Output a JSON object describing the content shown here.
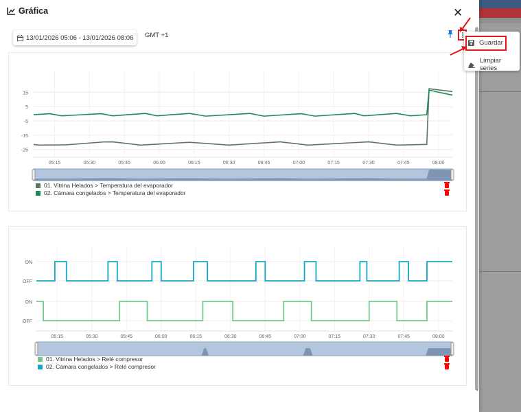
{
  "dialog": {
    "title": "Gráfica",
    "close_label": "✕"
  },
  "toolbar": {
    "date_range": "13/01/2026 05:06 - 13/01/2026 08:06",
    "timezone": "GMT +1"
  },
  "menu": {
    "items": [
      {
        "label": "Guardar",
        "icon": "save-icon"
      },
      {
        "label": "Limpiar series",
        "icon": "eraser-icon"
      }
    ]
  },
  "colors": {
    "accent": "#1a73e8",
    "highlight": "#e0161b",
    "navigator": "#b3c6de"
  },
  "chart_data": [
    {
      "type": "line",
      "x_ticks": [
        "05:15",
        "05:30",
        "05:45",
        "06:00",
        "06:15",
        "06:30",
        "06:45",
        "07:00",
        "07:15",
        "07:30",
        "07:45",
        "08:00"
      ],
      "y_ticks": [
        "15",
        "5",
        "-5",
        "-15",
        "-25"
      ],
      "x_range": [
        "05:06",
        "08:06"
      ],
      "y_range": [
        -30.5,
        20
      ],
      "grid": true,
      "legend_placement": "bottom-left",
      "series": [
        {
          "name": "01. Vitrina Helados > Temperatura del evaporador",
          "color": "#5e7565",
          "points": [
            [
              "05:06",
              -21.5
            ],
            [
              "05:08",
              -22
            ],
            [
              "05:20",
              -21.8
            ],
            [
              "05:36",
              -19.8
            ],
            [
              "05:40",
              -19.7
            ],
            [
              "05:52",
              -22
            ],
            [
              "06:13",
              -20
            ],
            [
              "06:30",
              -22
            ],
            [
              "06:52",
              -19.7
            ],
            [
              "07:04",
              -22
            ],
            [
              "07:30",
              -19.7
            ],
            [
              "07:42",
              -22
            ],
            [
              "07:55",
              -21.5
            ],
            [
              "07:56",
              17.5
            ],
            [
              "08:06",
              15.5
            ]
          ]
        },
        {
          "name": "02. Cámara congelados > Temperatura del evaporador",
          "color": "#1b8a57",
          "points": [
            [
              "05:06",
              -0.7
            ],
            [
              "05:13",
              0
            ],
            [
              "05:18",
              -1.5
            ],
            [
              "05:35",
              0
            ],
            [
              "05:40",
              -1.5
            ],
            [
              "05:54",
              0.2
            ],
            [
              "05:59",
              -1.5
            ],
            [
              "06:13",
              0.2
            ],
            [
              "06:20",
              -1.7
            ],
            [
              "06:39",
              0.2
            ],
            [
              "06:45",
              -1.7
            ],
            [
              "07:01",
              0
            ],
            [
              "07:07",
              -1.7
            ],
            [
              "07:24",
              0.2
            ],
            [
              "07:28",
              -1.5
            ],
            [
              "07:42",
              0.2
            ],
            [
              "07:48",
              -1.5
            ],
            [
              "07:55",
              -0.7
            ],
            [
              "07:56",
              16.5
            ],
            [
              "08:06",
              13
            ]
          ]
        }
      ]
    },
    {
      "type": "line",
      "step": true,
      "x_ticks": [
        "05:15",
        "05:30",
        "05:45",
        "06:00",
        "06:15",
        "06:30",
        "06:45",
        "07:00",
        "07:15",
        "07:30",
        "07:45",
        "08:00"
      ],
      "y_ticks": [
        "ON",
        "OFF",
        "ON",
        "OFF"
      ],
      "x_range": [
        "05:06",
        "08:06"
      ],
      "grid": true,
      "legend_placement": "bottom-left",
      "series": [
        {
          "name": "01. Vitrina Helados > Relé compresor",
          "color": "#74c98e",
          "initial": "ON",
          "transitions": [
            [
              "05:09",
              "OFF"
            ],
            [
              "05:42",
              "ON"
            ],
            [
              "05:54",
              "OFF"
            ],
            [
              "06:18",
              "ON"
            ],
            [
              "06:31",
              "OFF"
            ],
            [
              "06:53",
              "ON"
            ],
            [
              "07:05",
              "OFF"
            ],
            [
              "07:30",
              "ON"
            ],
            [
              "07:42",
              "OFF"
            ],
            [
              "07:55",
              "ON"
            ]
          ]
        },
        {
          "name": "02. Cámara congelados > Relé compresor",
          "color": "#16a6c9",
          "initial": "OFF",
          "transitions": [
            [
              "05:14",
              "ON"
            ],
            [
              "05:19",
              "OFF"
            ],
            [
              "05:37",
              "ON"
            ],
            [
              "05:41",
              "OFF"
            ],
            [
              "05:56",
              "ON"
            ],
            [
              "06:00",
              "OFF"
            ],
            [
              "06:14",
              "ON"
            ],
            [
              "06:20",
              "OFF"
            ],
            [
              "06:41",
              "ON"
            ],
            [
              "06:45",
              "OFF"
            ],
            [
              "07:02",
              "ON"
            ],
            [
              "07:07",
              "OFF"
            ],
            [
              "07:26",
              "ON"
            ],
            [
              "07:29",
              "OFF"
            ],
            [
              "07:43",
              "ON"
            ],
            [
              "07:47",
              "OFF"
            ],
            [
              "07:55",
              "ON"
            ]
          ]
        }
      ]
    }
  ]
}
